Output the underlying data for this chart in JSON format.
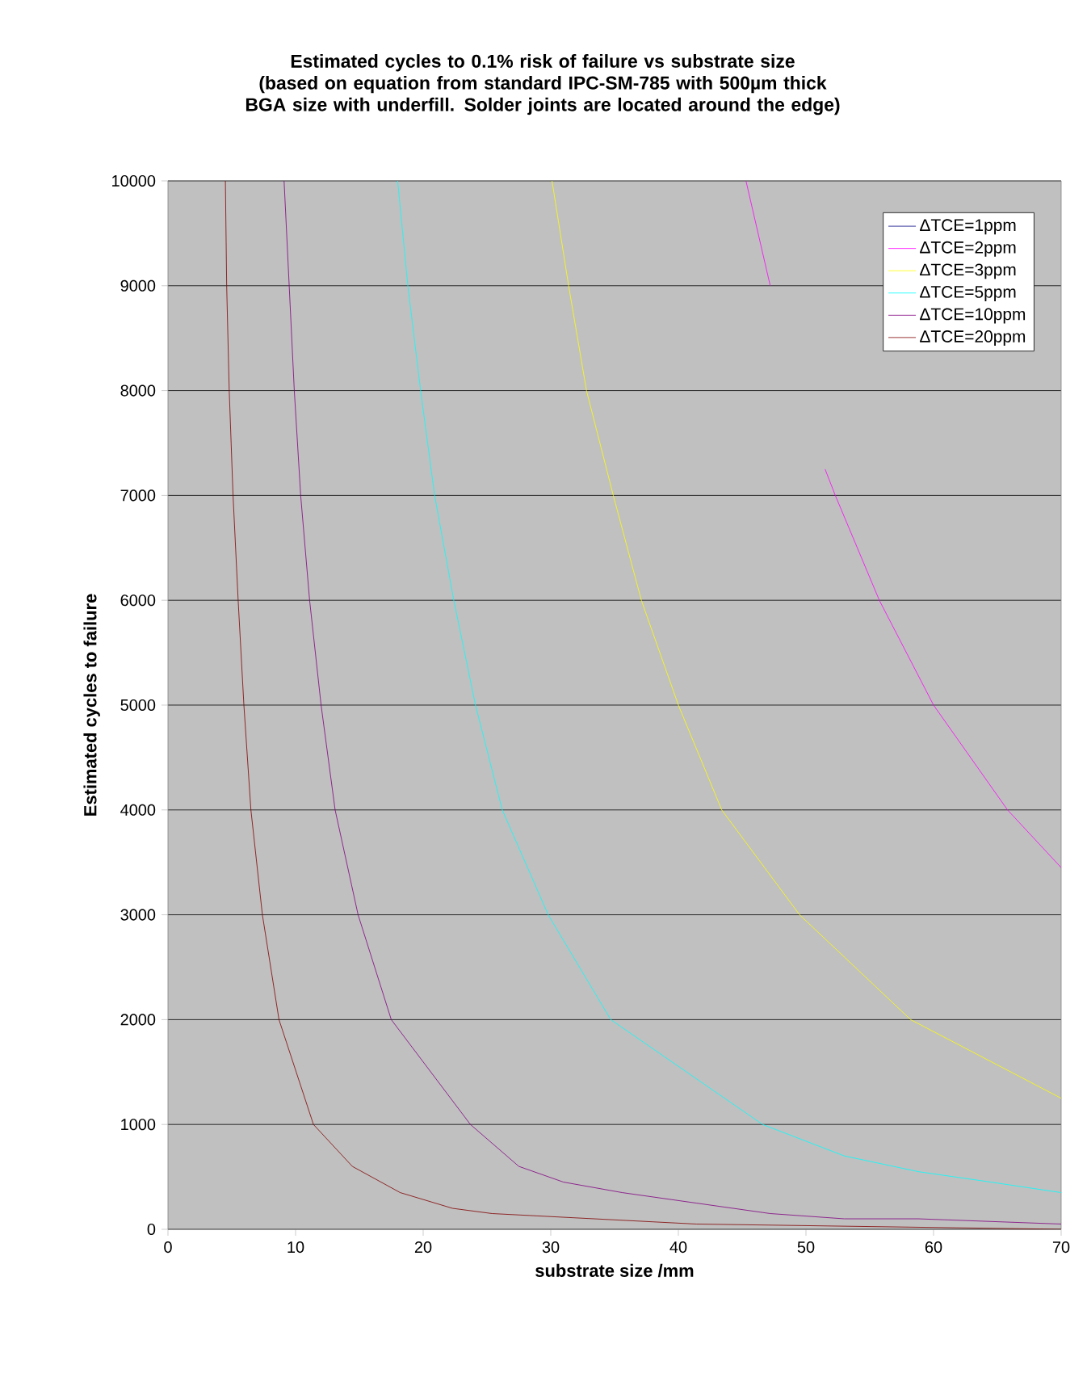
{
  "chart_data": {
    "type": "line",
    "title": "Estimated cycles to 0.1% risk of failure vs substrate size",
    "subtitle": "(based on equation from standard IPC-SM-785 with 500µm thick BGA size with underfill. Solder joints are located around the edge)",
    "xlabel": "substrate size /mm",
    "ylabel": "Estimated cycles to failure",
    "xlim": [
      0,
      70
    ],
    "ylim": [
      0,
      10000
    ],
    "xticks": [
      0,
      10,
      20,
      30,
      40,
      50,
      60,
      70
    ],
    "yticks": [
      0,
      1000,
      2000,
      3000,
      4000,
      5000,
      6000,
      7000,
      8000,
      9000,
      10000
    ],
    "grid": "y",
    "legend": "top right",
    "marker": "none",
    "line_style": "solid",
    "series": [
      {
        "name": "ΔTCE=1ppm",
        "color": "#000080"
      },
      {
        "name": "ΔTCE=2ppm",
        "color": "#ff00ff",
        "x": [
          45.3,
          47.2,
          49,
          51.5,
          52.3,
          55.75,
          60.0,
          65.8,
          70
        ],
        "values": [
          10000,
          9000,
          null,
          7250,
          7000,
          6000,
          5000,
          4000,
          3450
        ]
      },
      {
        "name": "ΔTCE=3ppm",
        "color": "#ffff00",
        "x": [
          30.1,
          31.4,
          32.8,
          34.9,
          37.1,
          40.0,
          43.4,
          49.5,
          58.2,
          70
        ],
        "values": [
          10000,
          9000,
          8000,
          7000,
          6000,
          5000,
          4000,
          3000,
          2000,
          1250
        ]
      },
      {
        "name": "ΔTCE=5ppm",
        "color": "#00ffff",
        "x": [
          18.0,
          18.8,
          19.8,
          20.9,
          22.4,
          24.1,
          26.2,
          29.8,
          34.7,
          46.6,
          53,
          58.8,
          64.5,
          70
        ],
        "values": [
          10000,
          9000,
          8000,
          7000,
          6000,
          5000,
          4000,
          3000,
          2000,
          1000,
          700,
          550,
          450,
          350
        ]
      },
      {
        "name": "ΔTCE=10ppm",
        "color": "#800080",
        "x": [
          9.1,
          9.5,
          9.9,
          10.4,
          11.1,
          12.0,
          13.1,
          14.9,
          17.5,
          23.7,
          27.5,
          31,
          35.6,
          41.4,
          47.2,
          53,
          58.8,
          70
        ],
        "values": [
          10000,
          9000,
          8000,
          7000,
          6000,
          5000,
          4000,
          3000,
          2000,
          1000,
          600,
          450,
          350,
          250,
          150,
          100,
          100,
          50
        ]
      },
      {
        "name": "ΔTCE=20ppm",
        "color": "#800000",
        "x": [
          4.5,
          4.6,
          4.8,
          5.1,
          5.5,
          5.95,
          6.5,
          7.4,
          8.7,
          11.4,
          14.45,
          18.2,
          22.3,
          25.4,
          41.4,
          70
        ],
        "values": [
          10000,
          9000,
          8000,
          7000,
          6000,
          5000,
          4000,
          3000,
          2000,
          1000,
          600,
          350,
          200,
          150,
          50,
          0
        ]
      }
    ]
  }
}
